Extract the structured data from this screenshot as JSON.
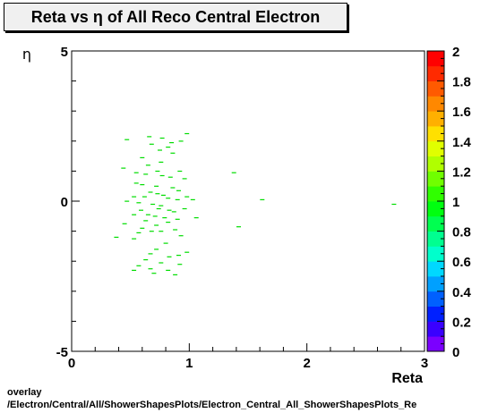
{
  "chart_data": {
    "type": "heatmap",
    "title": "Reta vs  η of All Reco Central Electron",
    "xlabel": "Reta",
    "ylabel": "η",
    "xlim": [
      0,
      3
    ],
    "ylim": [
      -5,
      5
    ],
    "x_ticks": [
      "0",
      "1",
      "2",
      "3"
    ],
    "y_ticks": [
      "-5",
      "0",
      "5"
    ],
    "colorbar": {
      "range": [
        0,
        2
      ],
      "ticks": [
        "0",
        "0.2",
        "0.4",
        "0.6",
        "0.8",
        "1",
        "1.2",
        "1.4",
        "1.6",
        "1.8",
        "2"
      ],
      "colors": [
        "#7b00ff",
        "#3a00ff",
        "#0020ff",
        "#0060ff",
        "#00a0ff",
        "#00d8ff",
        "#00ffcc",
        "#00ff90",
        "#00ff50",
        "#00ff10",
        "#30ff00",
        "#70ff00",
        "#b0ff00",
        "#e0ff00",
        "#ffe000",
        "#ffb000",
        "#ff8800",
        "#ff5a00",
        "#ff2a00",
        "#ff0000"
      ]
    },
    "cell_color": "#00dd00",
    "points": [
      [
        0.47,
        2.05
      ],
      [
        0.66,
        2.15
      ],
      [
        0.77,
        2.1
      ],
      [
        0.85,
        1.95
      ],
      [
        0.98,
        2.25
      ],
      [
        0.93,
        2.0
      ],
      [
        0.82,
        1.8
      ],
      [
        0.68,
        1.9
      ],
      [
        0.75,
        1.7
      ],
      [
        0.86,
        1.6
      ],
      [
        0.6,
        1.45
      ],
      [
        0.76,
        1.3
      ],
      [
        0.65,
        1.2
      ],
      [
        0.44,
        1.1
      ],
      [
        0.73,
        1.0
      ],
      [
        0.92,
        1.0
      ],
      [
        0.55,
        0.95
      ],
      [
        0.63,
        0.9
      ],
      [
        0.77,
        0.85
      ],
      [
        0.84,
        0.8
      ],
      [
        0.96,
        0.75
      ],
      [
        0.55,
        0.6
      ],
      [
        0.6,
        0.55
      ],
      [
        0.72,
        0.5
      ],
      [
        0.86,
        0.45
      ],
      [
        0.91,
        0.35
      ],
      [
        0.67,
        0.3
      ],
      [
        0.73,
        0.25
      ],
      [
        0.78,
        0.2
      ],
      [
        0.53,
        0.15
      ],
      [
        0.62,
        0.15
      ],
      [
        0.82,
        0.1
      ],
      [
        0.9,
        0.05
      ],
      [
        0.98,
        0.15
      ],
      [
        1.03,
        0.05
      ],
      [
        0.47,
        0.0
      ],
      [
        0.57,
        -0.05
      ],
      [
        0.69,
        -0.1
      ],
      [
        0.76,
        -0.15
      ],
      [
        0.74,
        -0.25
      ],
      [
        0.83,
        -0.3
      ],
      [
        0.87,
        -0.35
      ],
      [
        0.96,
        -0.25
      ],
      [
        0.59,
        -0.3
      ],
      [
        0.65,
        -0.45
      ],
      [
        0.71,
        -0.5
      ],
      [
        0.79,
        -0.55
      ],
      [
        0.9,
        -0.6
      ],
      [
        0.53,
        -0.45
      ],
      [
        0.63,
        -0.65
      ],
      [
        0.82,
        -0.7
      ],
      [
        1.06,
        -0.55
      ],
      [
        0.72,
        -0.8
      ],
      [
        0.45,
        -0.75
      ],
      [
        0.6,
        -0.9
      ],
      [
        0.68,
        -1.0
      ],
      [
        0.76,
        -1.0
      ],
      [
        0.88,
        -0.95
      ],
      [
        0.57,
        -1.05
      ],
      [
        0.93,
        -1.15
      ],
      [
        0.38,
        -1.2
      ],
      [
        0.53,
        -1.25
      ],
      [
        0.8,
        -1.4
      ],
      [
        0.72,
        -1.6
      ],
      [
        0.67,
        -1.75
      ],
      [
        0.63,
        -1.95
      ],
      [
        0.83,
        -1.85
      ],
      [
        0.91,
        -1.8
      ],
      [
        0.98,
        -1.7
      ],
      [
        0.76,
        -2.05
      ],
      [
        0.92,
        -2.1
      ],
      [
        0.57,
        -2.15
      ],
      [
        0.67,
        -2.25
      ],
      [
        0.82,
        -2.3
      ],
      [
        0.7,
        -2.4
      ],
      [
        0.53,
        -2.3
      ],
      [
        0.88,
        -2.45
      ],
      [
        1.38,
        0.95
      ],
      [
        1.62,
        0.05
      ],
      [
        1.42,
        -0.85
      ],
      [
        2.74,
        -0.1
      ]
    ]
  },
  "footer": {
    "line1": "overlay",
    "line2": "/Electron/Central/All/ShowerShapesPlots/Electron_Central_All_ShowerShapesPlots_Re"
  }
}
